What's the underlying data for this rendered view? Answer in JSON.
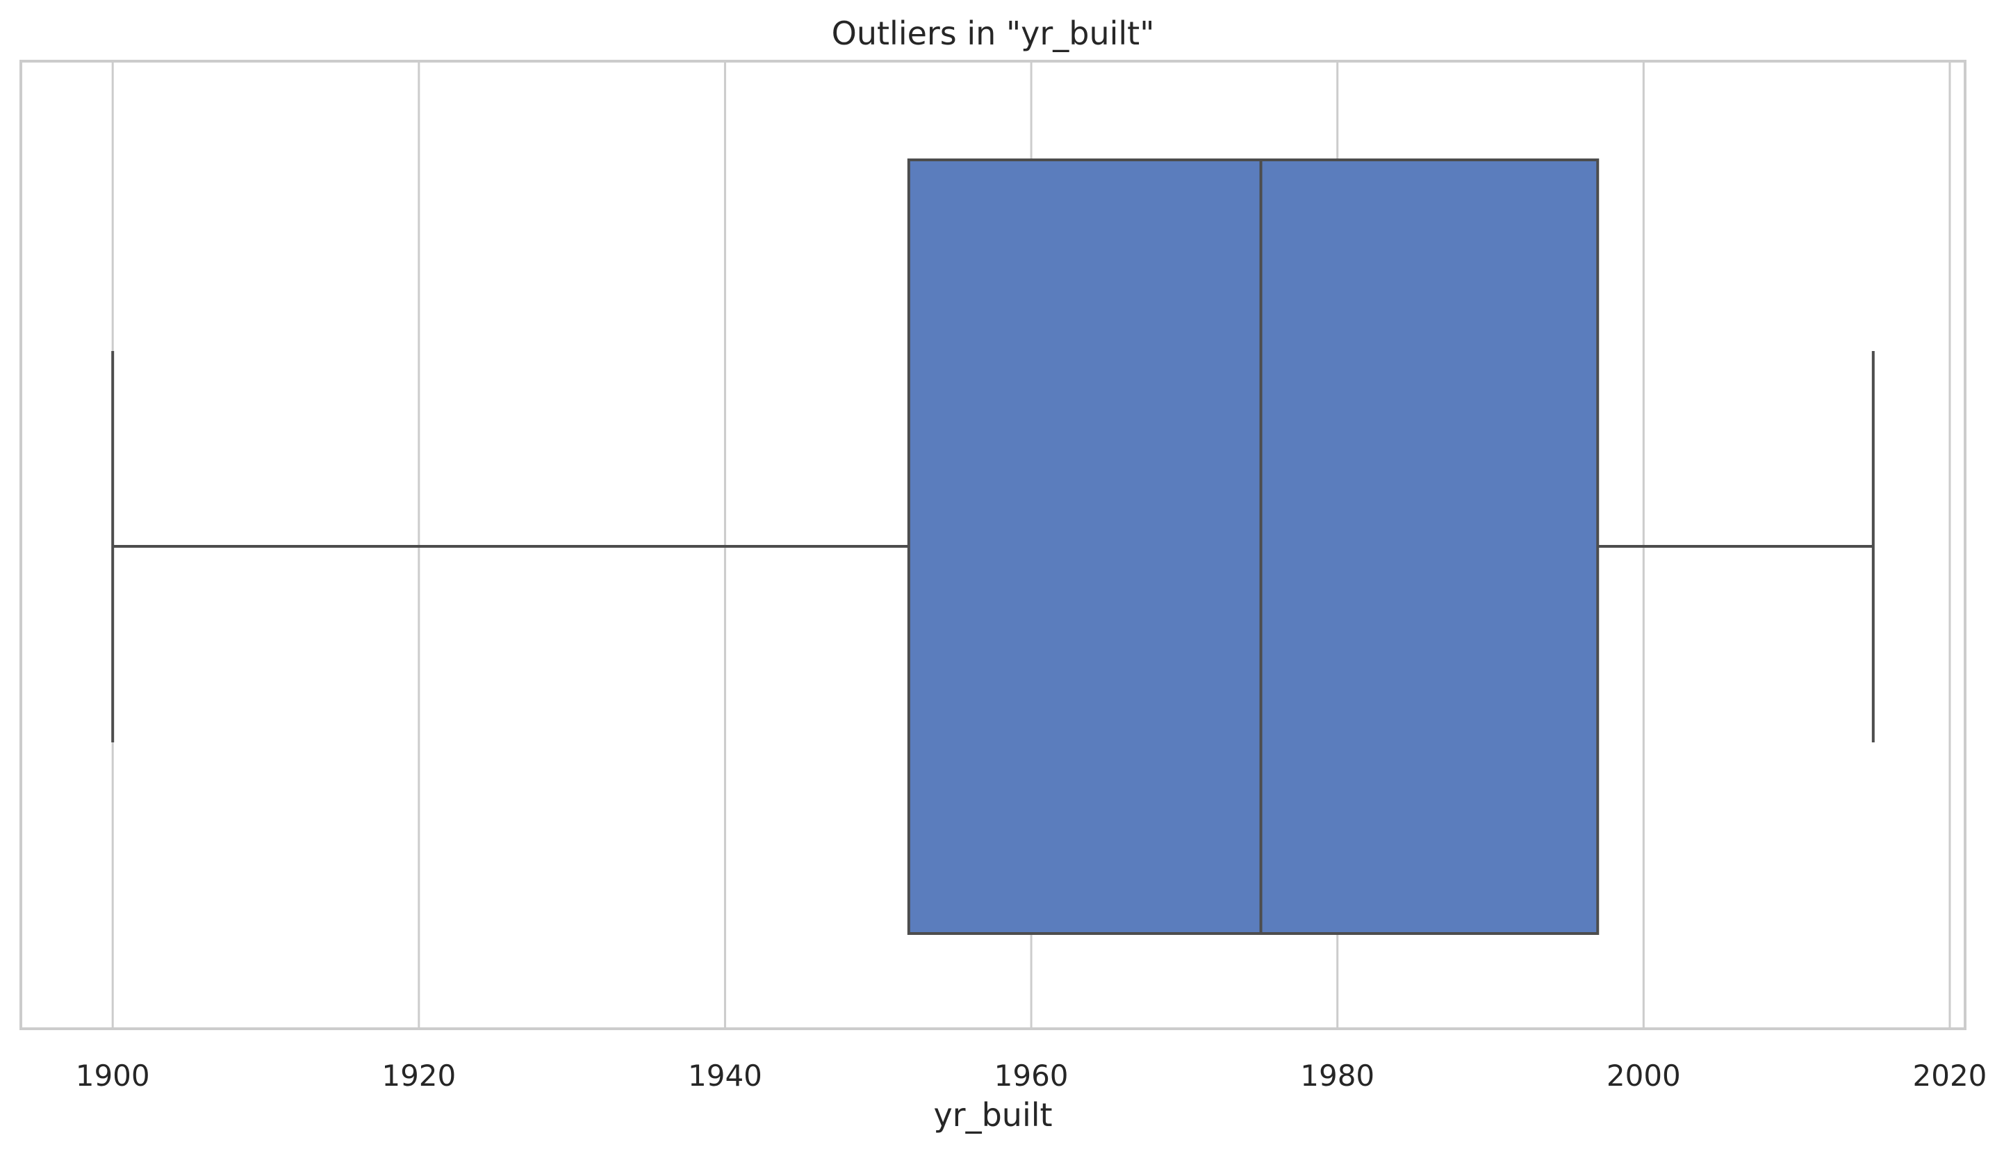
{
  "chart_data": {
    "type": "box",
    "title": "Outliers in \"yr_built\"",
    "xlabel": "yr_built",
    "ylabel": "",
    "xlim": [
      1894,
      2021
    ],
    "x_ticks": [
      1900,
      1920,
      1940,
      1960,
      1980,
      2000,
      2020
    ],
    "x_tick_labels": [
      "1900",
      "1920",
      "1940",
      "1960",
      "1980",
      "2000",
      "2020"
    ],
    "grid": true,
    "orientation": "horizontal",
    "box": {
      "whisker_low": 1900,
      "q1": 1952,
      "median": 1975,
      "q3": 1997,
      "whisker_high": 2015
    },
    "outliers": [],
    "colors": {
      "box_fill": "#5b7dbd",
      "line": "#4d4d4d",
      "grid": "#cccccc",
      "frame": "#cccccc",
      "text": "#262626"
    }
  }
}
